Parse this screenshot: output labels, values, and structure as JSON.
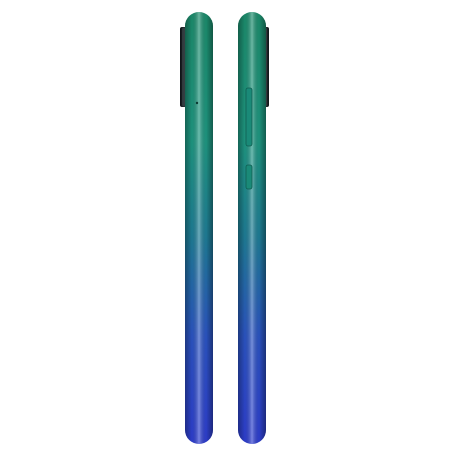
{
  "scene": {
    "subject": "smartphone-side-profiles",
    "background_color": "#ffffff",
    "gradient": {
      "top_color": "#1c8f6e",
      "upper_mid_color": "#1f9a84",
      "mid_color": "#1f7f99",
      "lower_mid_color": "#2c56c6",
      "bottom_color": "#2f3fd3"
    },
    "camera_module_color": "#1a1f23",
    "edge_highlight_color": "#9fe3cf",
    "edge_shadow_color": "#0a3f36"
  }
}
